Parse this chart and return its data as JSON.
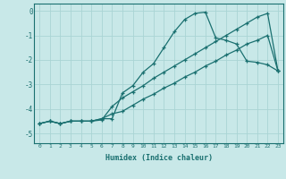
{
  "xlabel": "Humidex (Indice chaleur)",
  "background_color": "#c8e8e8",
  "line_color": "#1a7070",
  "grid_color": "#aad4d4",
  "xlim": [
    -0.5,
    23.5
  ],
  "ylim": [
    -5.4,
    0.3
  ],
  "xticks": [
    0,
    1,
    2,
    3,
    4,
    5,
    6,
    7,
    8,
    9,
    10,
    11,
    12,
    13,
    14,
    15,
    16,
    17,
    18,
    19,
    20,
    21,
    22,
    23
  ],
  "yticks": [
    0,
    -1,
    -2,
    -3,
    -4,
    -5
  ],
  "line1_x": [
    0,
    1,
    2,
    3,
    4,
    5,
    6,
    7,
    8,
    9,
    10,
    11,
    12,
    13,
    14,
    15,
    16,
    17,
    18,
    19,
    20,
    21,
    22,
    23
  ],
  "line1_y": [
    -4.6,
    -4.5,
    -4.6,
    -4.5,
    -4.5,
    -4.5,
    -4.4,
    -4.4,
    -3.35,
    -3.05,
    -2.5,
    -2.15,
    -1.5,
    -0.85,
    -0.35,
    -0.1,
    -0.05,
    -1.1,
    -1.2,
    -1.35,
    -2.05,
    -2.1,
    -2.2,
    -2.45
  ],
  "line2_x": [
    0,
    1,
    2,
    3,
    4,
    5,
    6,
    7,
    8,
    9,
    10,
    11,
    12,
    13,
    14,
    15,
    16,
    17,
    18,
    19,
    20,
    21,
    22,
    23
  ],
  "line2_y": [
    -4.6,
    -4.5,
    -4.6,
    -4.5,
    -4.5,
    -4.5,
    -4.4,
    -4.2,
    -4.1,
    -3.85,
    -3.6,
    -3.4,
    -3.15,
    -2.95,
    -2.7,
    -2.5,
    -2.25,
    -2.05,
    -1.8,
    -1.6,
    -1.35,
    -1.2,
    -1.0,
    -2.45
  ],
  "line3_x": [
    0,
    1,
    2,
    3,
    4,
    5,
    6,
    7,
    8,
    9,
    10,
    11,
    12,
    13,
    14,
    15,
    16,
    17,
    18,
    19,
    20,
    21,
    22,
    23
  ],
  "line3_y": [
    -4.6,
    -4.5,
    -4.6,
    -4.5,
    -4.5,
    -4.5,
    -4.45,
    -3.9,
    -3.55,
    -3.3,
    -3.05,
    -2.75,
    -2.5,
    -2.25,
    -2.0,
    -1.75,
    -1.5,
    -1.25,
    -1.0,
    -0.75,
    -0.5,
    -0.25,
    -0.1,
    -2.45
  ]
}
